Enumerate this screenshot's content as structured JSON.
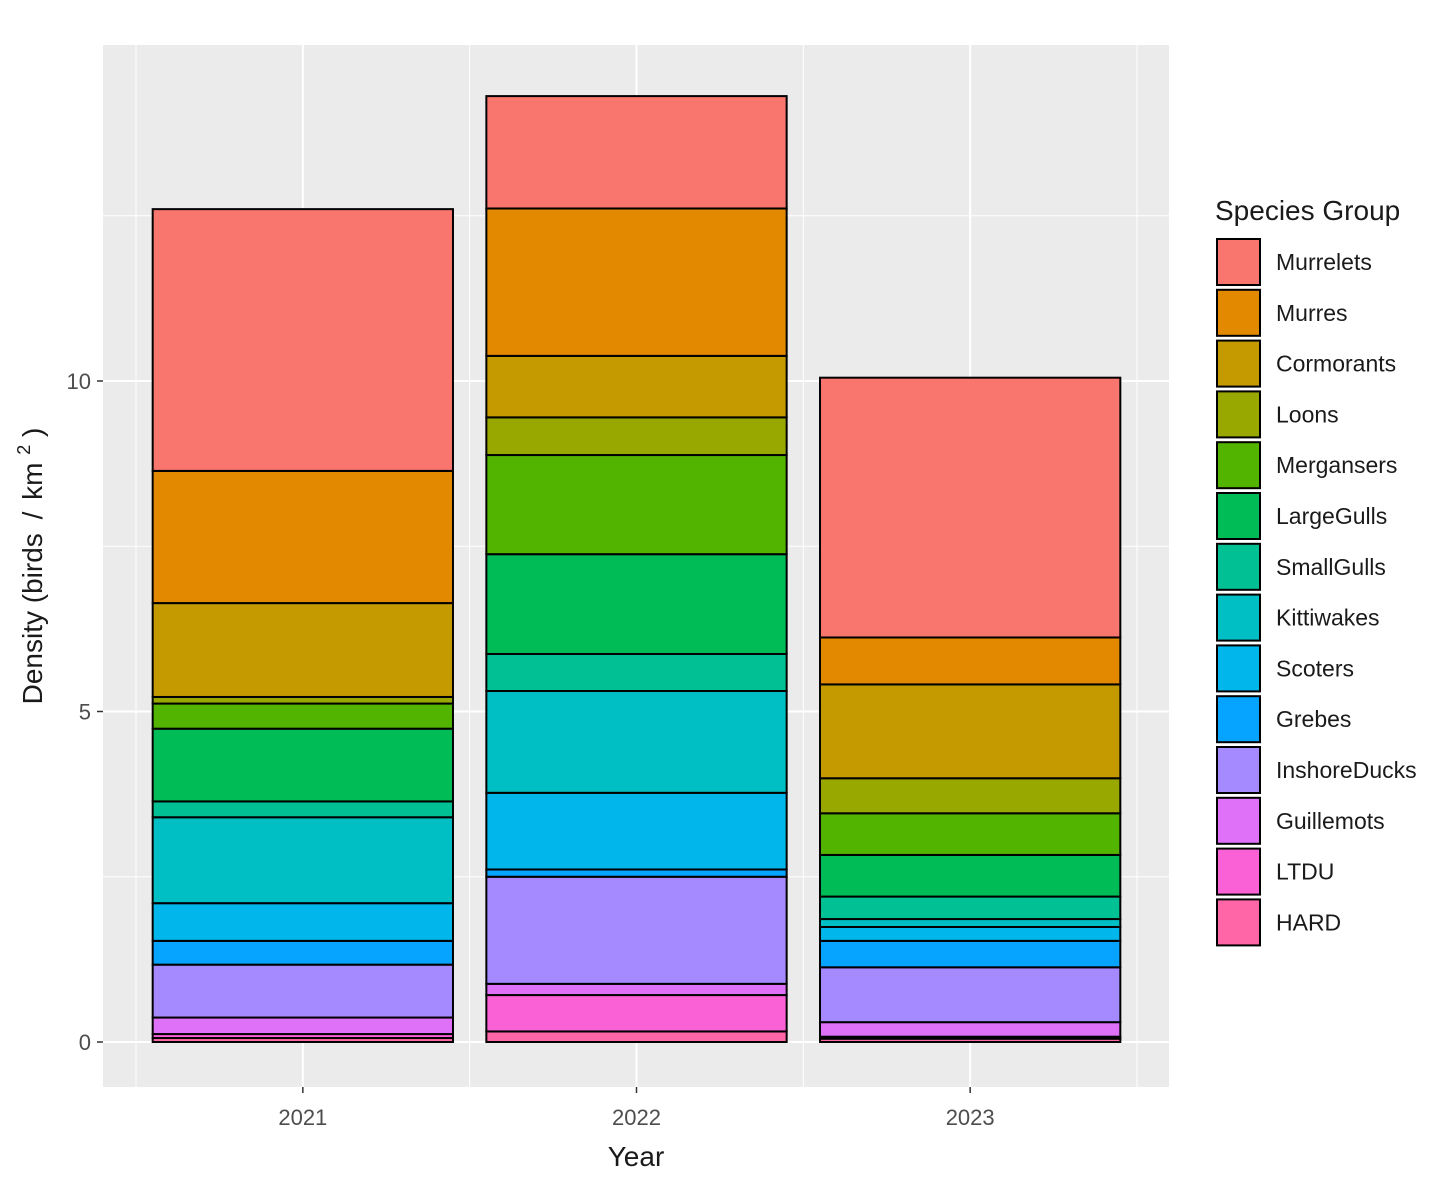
{
  "chart_data": {
    "type": "bar",
    "stacked": true,
    "xlabel": "Year",
    "ylabel_main": "Density (birds",
    "ylabel_sep": "/",
    "ylabel_unit": "km",
    "ylabel_sup": "2",
    "ylabel_close": ")",
    "categories": [
      "2021",
      "2022",
      "2023"
    ],
    "yticks": [
      0,
      5,
      10
    ],
    "ylim": [
      -0.7,
      15
    ],
    "grid": true,
    "legend": {
      "title": "Species Group",
      "placement": "right"
    },
    "series": [
      {
        "name": "Murrelets",
        "color": "#F8766D",
        "values": [
          3.96,
          1.7,
          3.93
        ]
      },
      {
        "name": "Murres",
        "color": "#E38900",
        "values": [
          2.0,
          2.23,
          0.71
        ]
      },
      {
        "name": "Cormorants",
        "color": "#C49A00",
        "values": [
          1.42,
          0.93,
          1.42
        ]
      },
      {
        "name": "Loons",
        "color": "#99A800",
        "values": [
          0.1,
          0.57,
          0.53
        ]
      },
      {
        "name": "Mergansers",
        "color": "#53B400",
        "values": [
          0.38,
          1.5,
          0.63
        ]
      },
      {
        "name": "LargeGulls",
        "color": "#00BC56",
        "values": [
          1.1,
          1.51,
          0.63
        ]
      },
      {
        "name": "SmallGulls",
        "color": "#00C094",
        "values": [
          0.24,
          0.56,
          0.34
        ]
      },
      {
        "name": "Kittiwakes",
        "color": "#00BFC4",
        "values": [
          1.3,
          1.54,
          0.12
        ]
      },
      {
        "name": "Scoters",
        "color": "#00B6EB",
        "values": [
          0.57,
          1.16,
          0.21
        ]
      },
      {
        "name": "Grebes",
        "color": "#06A4FF",
        "values": [
          0.36,
          0.11,
          0.4
        ]
      },
      {
        "name": "InshoreDucks",
        "color": "#A58AFF",
        "values": [
          0.8,
          1.62,
          0.83
        ]
      },
      {
        "name": "Guillemots",
        "color": "#DF70F8",
        "values": [
          0.25,
          0.17,
          0.22
        ]
      },
      {
        "name": "LTDU",
        "color": "#FB61D7",
        "values": [
          0.06,
          0.55,
          0.03
        ]
      },
      {
        "name": "HARD",
        "color": "#FF66A8",
        "values": [
          0.06,
          0.16,
          0.05
        ]
      }
    ]
  }
}
